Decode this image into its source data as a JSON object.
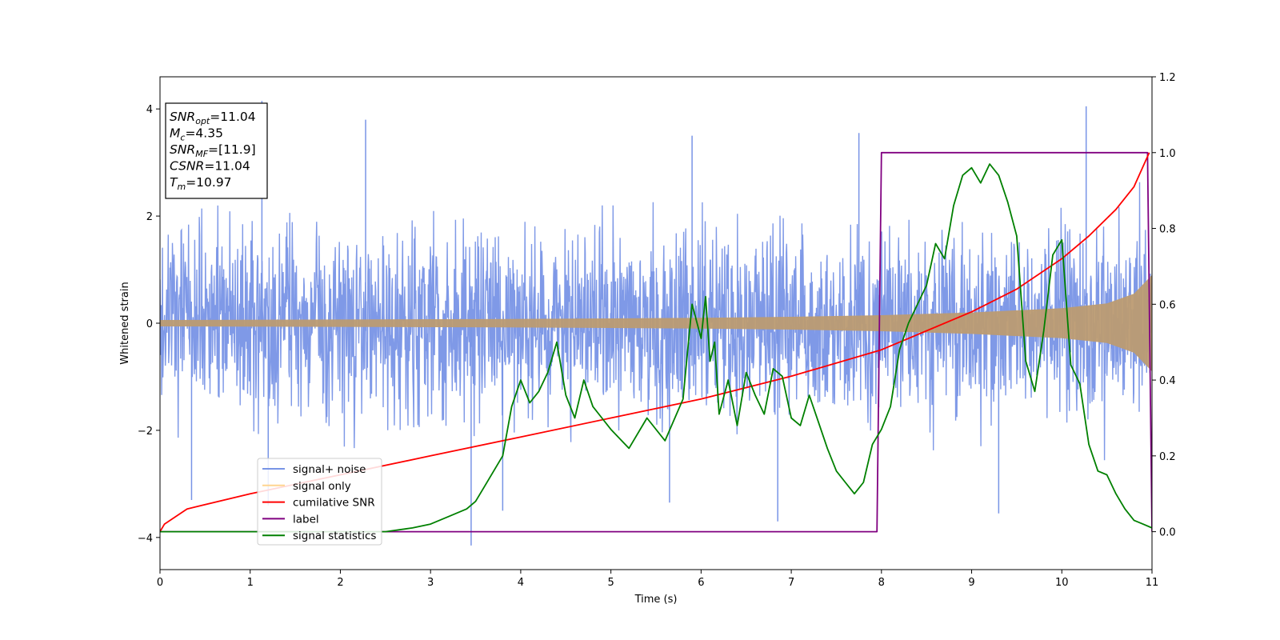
{
  "chart_data": {
    "type": "line",
    "title": "",
    "xlabel": "Time (s)",
    "ylabel": "Whitened strain",
    "xlim": [
      0,
      11
    ],
    "ylim": [
      -4.6,
      4.6
    ],
    "y2lim": [
      -0.1,
      1.2
    ],
    "x_ticks": [
      0,
      1,
      2,
      3,
      4,
      5,
      6,
      7,
      8,
      9,
      10,
      11
    ],
    "x_tick_labels": [
      "0",
      "1",
      "2",
      "3",
      "4",
      "5",
      "6",
      "7",
      "8",
      "9",
      "10",
      "11"
    ],
    "y_ticks": [
      -4,
      -2,
      0,
      2,
      4
    ],
    "y_tick_labels": [
      "−4",
      "−2",
      "0",
      "2",
      "4"
    ],
    "y2_ticks": [
      0.0,
      0.2,
      0.4,
      0.6,
      0.8,
      1.0,
      1.2
    ],
    "y2_tick_labels": [
      "0.0",
      "0.2",
      "0.4",
      "0.6",
      "0.8",
      "1.0",
      "1.2"
    ],
    "grid": false,
    "legend_position": "lower-left",
    "series": [
      {
        "name": "signal+ noise",
        "axis": "left",
        "color": "#7894e6",
        "style": "dense noise band",
        "envelope_x": [
          0,
          1,
          2,
          3,
          4,
          5,
          6,
          7,
          8,
          9,
          10,
          11
        ],
        "envelope_lower": [
          -2.1,
          -2.2,
          -2.1,
          -2.2,
          -2.1,
          -2.1,
          -2.2,
          -2.2,
          -2.1,
          -2.2,
          -2.1,
          -2.0
        ],
        "envelope_upper": [
          2.1,
          2.2,
          2.1,
          2.2,
          2.1,
          2.1,
          2.2,
          2.2,
          2.1,
          2.2,
          2.1,
          2.0
        ],
        "spikes": [
          {
            "x": 1.13,
            "y": 4.15
          },
          {
            "x": 2.28,
            "y": 3.8
          },
          {
            "x": 5.9,
            "y": 3.5
          },
          {
            "x": 7.75,
            "y": 3.55
          },
          {
            "x": 10.27,
            "y": 4.05
          },
          {
            "x": 0.35,
            "y": -3.3
          },
          {
            "x": 1.2,
            "y": -3.4
          },
          {
            "x": 3.45,
            "y": -4.15
          },
          {
            "x": 3.8,
            "y": -3.5
          },
          {
            "x": 5.65,
            "y": -3.35
          },
          {
            "x": 6.85,
            "y": -3.7
          },
          {
            "x": 9.3,
            "y": -3.55
          }
        ]
      },
      {
        "name": "signal only",
        "axis": "left",
        "color": "#bc9b72",
        "style": "chirp envelope",
        "envelope_x": [
          0,
          2,
          4,
          6,
          7,
          8,
          9,
          10,
          10.5,
          10.8,
          11
        ],
        "envelope_upper": [
          0.06,
          0.07,
          0.08,
          0.1,
          0.12,
          0.15,
          0.2,
          0.28,
          0.37,
          0.55,
          0.9
        ],
        "envelope_lower": [
          -0.06,
          -0.07,
          -0.08,
          -0.1,
          -0.12,
          -0.15,
          -0.2,
          -0.28,
          -0.37,
          -0.55,
          -0.9
        ]
      },
      {
        "name": "cumilative SNR",
        "axis": "right",
        "color": "#ff0000",
        "x": [
          0,
          0.05,
          0.3,
          1,
          2,
          3,
          4,
          5,
          6,
          7,
          8,
          8.5,
          9,
          9.5,
          10,
          10.3,
          10.6,
          10.8,
          10.97
        ],
        "y": [
          0.0,
          0.02,
          0.06,
          0.1,
          0.15,
          0.2,
          0.25,
          0.3,
          0.35,
          0.41,
          0.48,
          0.53,
          0.58,
          0.64,
          0.72,
          0.78,
          0.85,
          0.91,
          1.0
        ]
      },
      {
        "name": "label",
        "axis": "right",
        "color": "#800080",
        "x": [
          0,
          7.95,
          8.0,
          10.95,
          11.0
        ],
        "y": [
          0.0,
          0.0,
          1.0,
          1.0,
          0.0
        ]
      },
      {
        "name": "signal statistics",
        "axis": "right",
        "color": "#008000",
        "x": [
          0,
          2.5,
          2.8,
          3.0,
          3.2,
          3.4,
          3.5,
          3.6,
          3.7,
          3.8,
          3.9,
          4.0,
          4.1,
          4.2,
          4.3,
          4.4,
          4.5,
          4.6,
          4.7,
          4.8,
          4.9,
          5.0,
          5.2,
          5.4,
          5.6,
          5.8,
          5.9,
          6.0,
          6.05,
          6.1,
          6.15,
          6.2,
          6.3,
          6.4,
          6.5,
          6.6,
          6.7,
          6.8,
          6.9,
          7.0,
          7.1,
          7.2,
          7.3,
          7.4,
          7.5,
          7.6,
          7.7,
          7.8,
          7.9,
          8.0,
          8.1,
          8.2,
          8.3,
          8.4,
          8.5,
          8.6,
          8.7,
          8.8,
          8.9,
          9.0,
          9.1,
          9.2,
          9.3,
          9.4,
          9.5,
          9.6,
          9.7,
          9.8,
          9.9,
          10.0,
          10.1,
          10.2,
          10.3,
          10.4,
          10.5,
          10.6,
          10.7,
          10.8,
          10.9,
          11.0
        ],
        "y": [
          0.0,
          0.0,
          0.01,
          0.02,
          0.04,
          0.06,
          0.08,
          0.12,
          0.16,
          0.2,
          0.33,
          0.4,
          0.34,
          0.37,
          0.42,
          0.5,
          0.36,
          0.3,
          0.4,
          0.33,
          0.3,
          0.27,
          0.22,
          0.3,
          0.24,
          0.35,
          0.6,
          0.51,
          0.62,
          0.45,
          0.5,
          0.31,
          0.4,
          0.28,
          0.42,
          0.36,
          0.31,
          0.43,
          0.41,
          0.3,
          0.28,
          0.36,
          0.29,
          0.22,
          0.16,
          0.13,
          0.1,
          0.13,
          0.23,
          0.27,
          0.33,
          0.48,
          0.55,
          0.6,
          0.65,
          0.76,
          0.72,
          0.86,
          0.94,
          0.96,
          0.92,
          0.97,
          0.94,
          0.87,
          0.78,
          0.45,
          0.37,
          0.53,
          0.73,
          0.77,
          0.44,
          0.39,
          0.23,
          0.16,
          0.15,
          0.1,
          0.06,
          0.03,
          0.02,
          0.01
        ]
      }
    ],
    "annotation_box": {
      "lines": [
        {
          "main": "SNR",
          "sub": "opt",
          "value": "=11.04"
        },
        {
          "main": "M",
          "sub": "c",
          "value": "=4.35"
        },
        {
          "main": "SNR",
          "sub": "MF",
          "value": "=[11.9]"
        },
        {
          "main": "CSNR",
          "sub": "",
          "value": "=11.04"
        },
        {
          "main": "T",
          "sub": "m",
          "value": "=10.97"
        }
      ]
    }
  }
}
